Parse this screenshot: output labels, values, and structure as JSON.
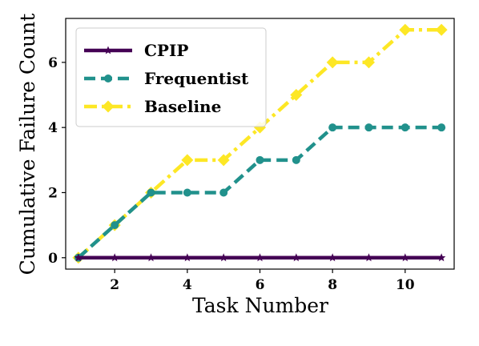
{
  "chart_data": {
    "type": "line",
    "title": "",
    "xlabel": "Task Number",
    "ylabel": "Cumulative Failure Count",
    "xlim": [
      0.65,
      11.35
    ],
    "ylim": [
      -0.35,
      7.35
    ],
    "xticks": [
      2,
      4,
      6,
      8,
      10
    ],
    "yticks": [
      0,
      2,
      4,
      6
    ],
    "grid": false,
    "legend_position": "top-left",
    "x": [
      1,
      2,
      3,
      4,
      5,
      6,
      7,
      8,
      9,
      10,
      11
    ],
    "series": [
      {
        "name": "CPIP",
        "values": [
          0,
          0,
          0,
          0,
          0,
          0,
          0,
          0,
          0,
          0,
          0
        ],
        "color": "#440154",
        "marker": "star",
        "linestyle": "solid"
      },
      {
        "name": "Frequentist",
        "values": [
          0,
          1,
          2,
          2,
          2,
          3,
          3,
          4,
          4,
          4,
          4
        ],
        "color": "#21918c",
        "marker": "circle",
        "linestyle": "dashed"
      },
      {
        "name": "Baseline",
        "values": [
          0,
          1,
          2,
          3,
          3,
          4,
          5,
          6,
          6,
          7,
          7
        ],
        "color": "#fde725",
        "marker": "diamond",
        "linestyle": "dashdot"
      }
    ]
  }
}
